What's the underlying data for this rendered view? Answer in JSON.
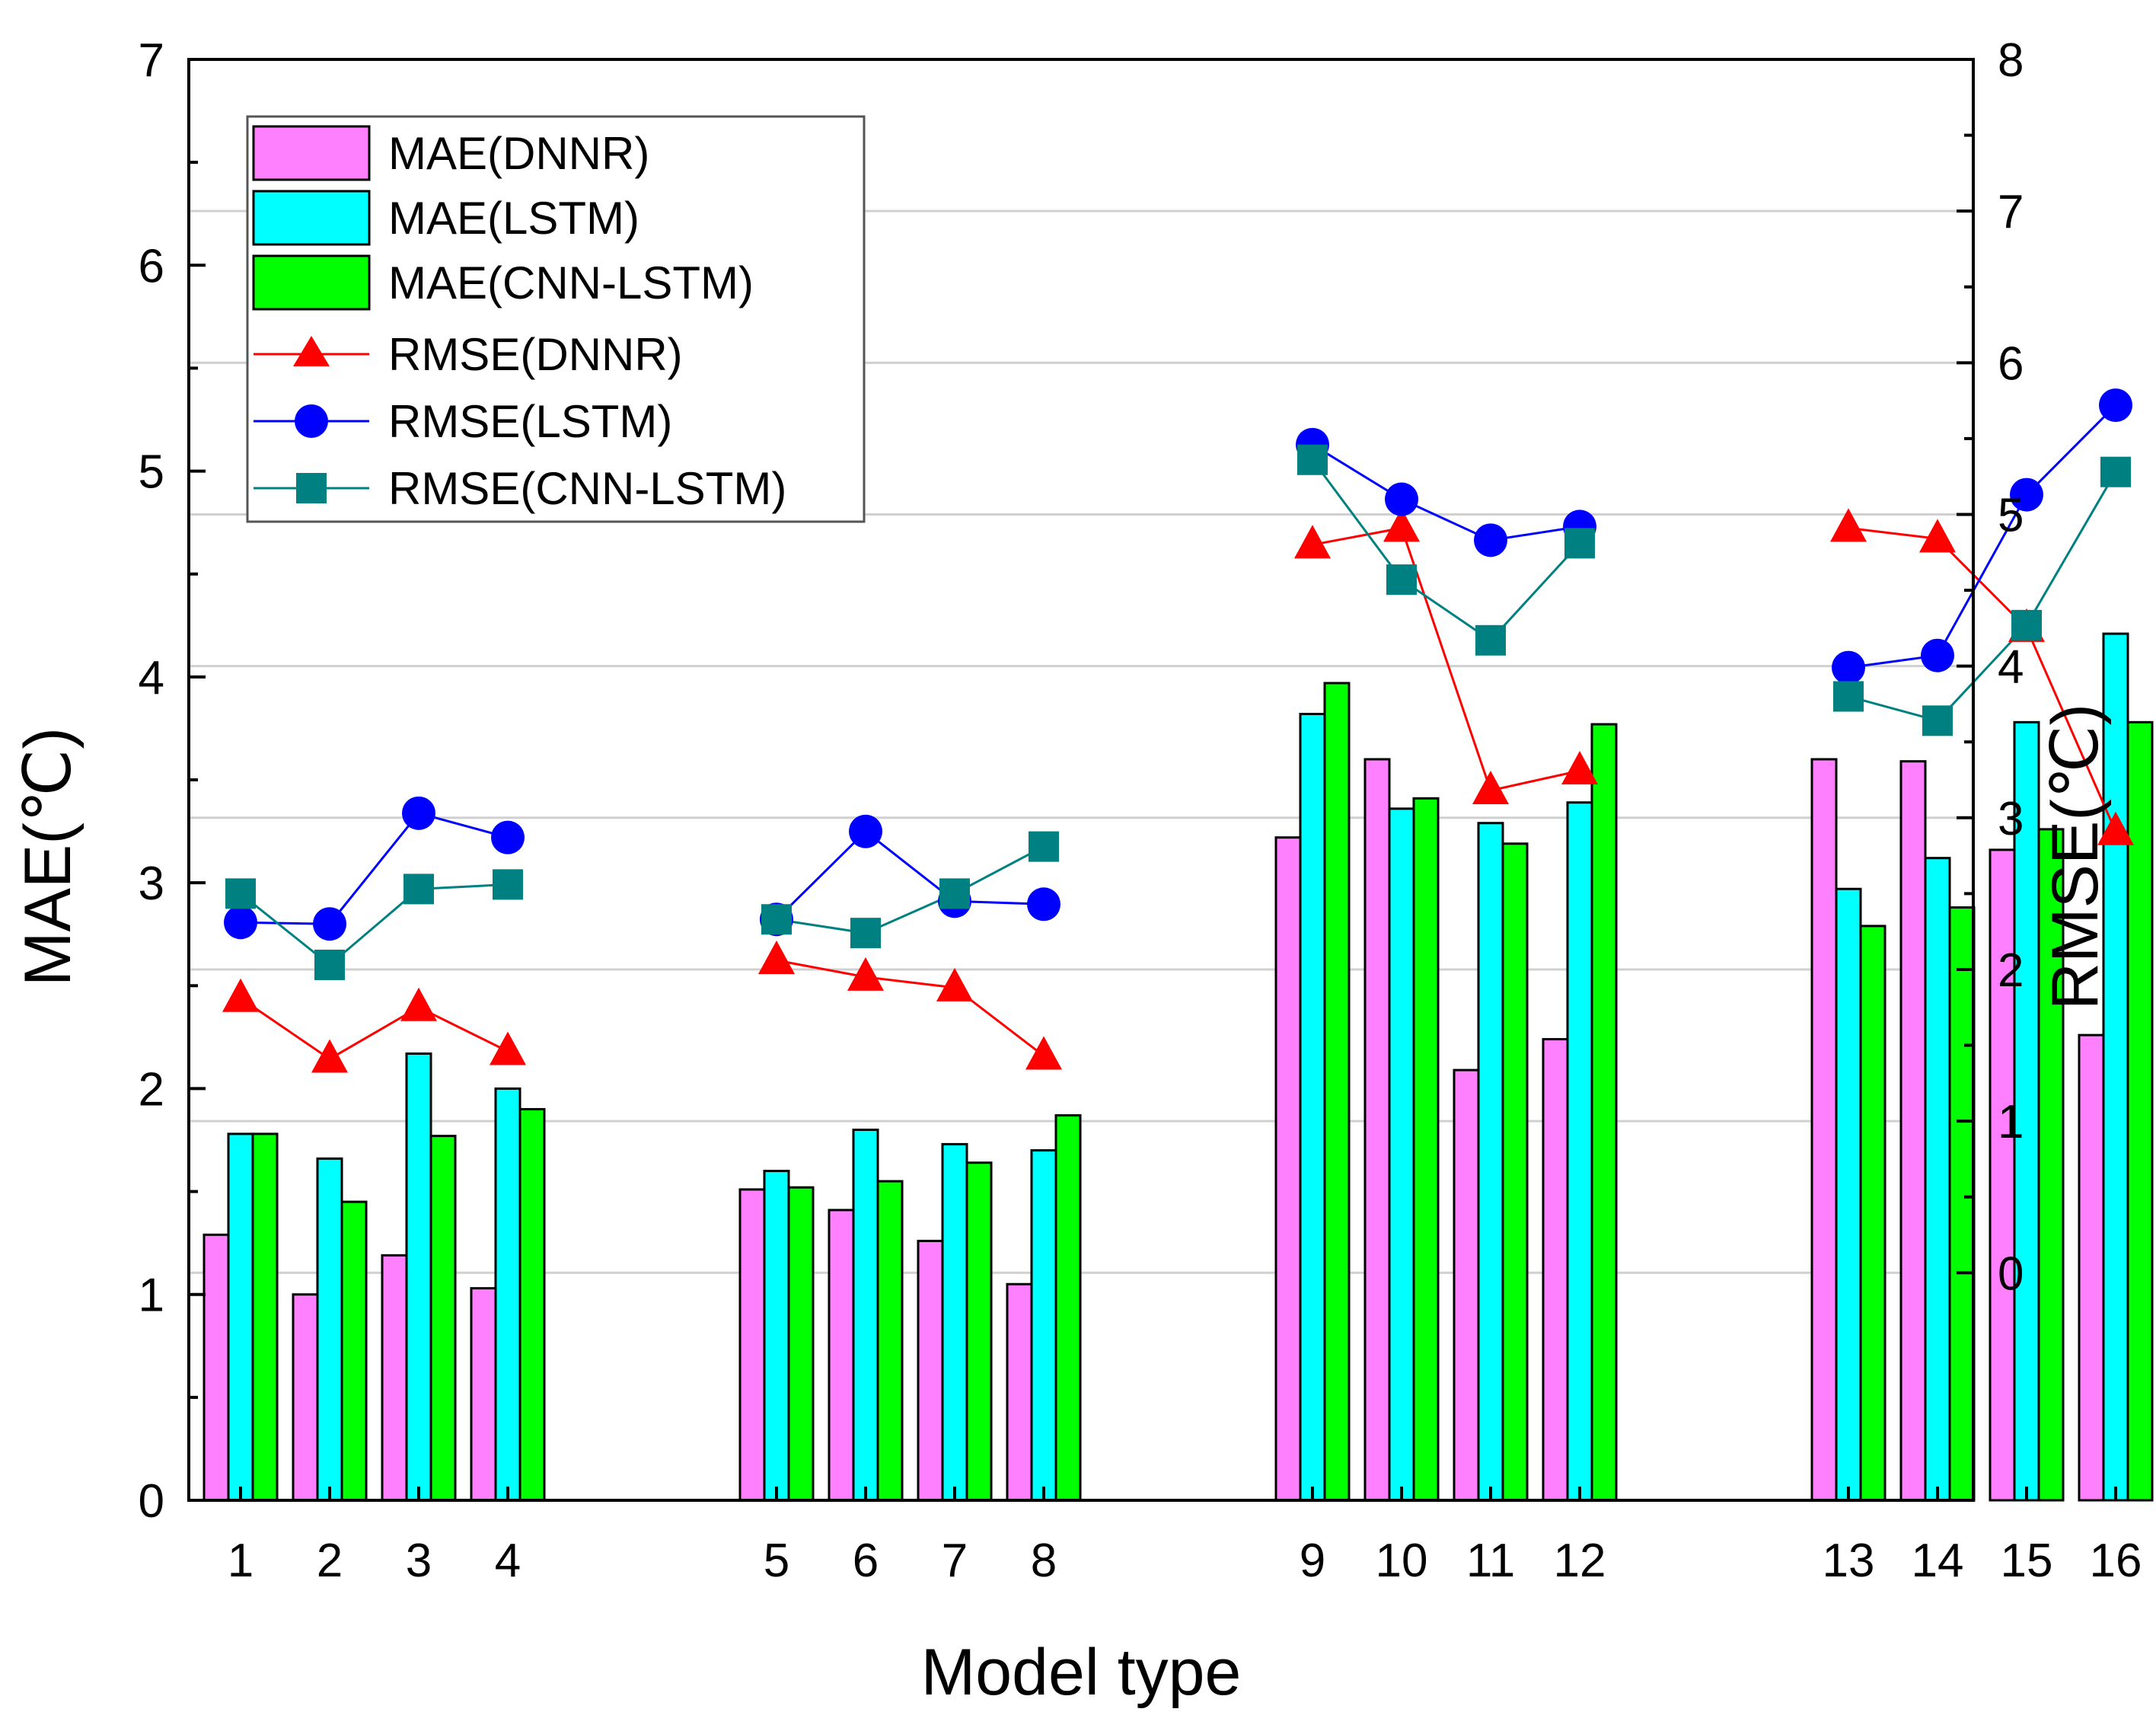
{
  "chart_data": {
    "type": "bar",
    "title": "",
    "xlabel": "Model type",
    "ylabel": "MAE(℃)",
    "y2label": "RMSE(℃)",
    "ylim": [
      0,
      7
    ],
    "y2lim": [
      -1.5,
      8
    ],
    "yticks": [
      "0",
      "1",
      "2",
      "3",
      "4",
      "5",
      "6",
      "7"
    ],
    "y2ticks": [
      "0",
      "1",
      "2",
      "3",
      "4",
      "5",
      "6",
      "7",
      "8"
    ],
    "grid": true,
    "legend_position": "top-left",
    "categories": [
      "1",
      "2",
      "3",
      "4",
      "5",
      "6",
      "7",
      "8",
      "9",
      "10",
      "11",
      "12",
      "13",
      "14",
      "15",
      "16"
    ],
    "bar_series": [
      {
        "name": "MAE(DNNR)",
        "color": "#ff80ff",
        "values": [
          1.29,
          1.0,
          1.19,
          1.03,
          1.51,
          1.41,
          1.26,
          1.05,
          3.22,
          3.6,
          2.09,
          2.24,
          3.6,
          3.59,
          3.16,
          2.26
        ]
      },
      {
        "name": "MAE(LSTM)",
        "color": "#00ffff",
        "values": [
          1.78,
          1.66,
          2.17,
          2.0,
          1.6,
          1.8,
          1.73,
          1.7,
          3.82,
          3.36,
          3.29,
          3.39,
          2.97,
          3.12,
          3.78,
          4.21
        ]
      },
      {
        "name": "MAE(CNN-LSTM)",
        "color": "#00ff00",
        "values": [
          1.78,
          1.45,
          1.77,
          1.9,
          1.52,
          1.55,
          1.64,
          1.87,
          3.97,
          3.41,
          3.19,
          3.77,
          2.79,
          2.88,
          3.26,
          3.78
        ]
      }
    ],
    "line_series": [
      {
        "name": "RMSE(DNNR)",
        "color": "#ff0000",
        "marker": "triangle",
        "values": [
          1.81,
          1.41,
          1.75,
          1.46,
          2.06,
          1.95,
          1.88,
          1.43,
          4.8,
          4.91,
          3.18,
          3.31,
          4.91,
          4.84,
          4.25,
          2.91
        ]
      },
      {
        "name": "RMSE(LSTM)",
        "color": "#0000ff",
        "marker": "circle",
        "values": [
          2.31,
          2.3,
          3.03,
          2.87,
          2.33,
          2.91,
          2.45,
          2.43,
          5.46,
          5.1,
          4.83,
          4.92,
          3.99,
          4.07,
          5.13,
          5.72
        ]
      },
      {
        "name": "RMSE(CNN-LSTM)",
        "color": "#008080",
        "marker": "square",
        "values": [
          2.5,
          2.03,
          2.53,
          2.56,
          2.33,
          2.24,
          2.5,
          2.81,
          5.36,
          4.57,
          4.17,
          4.81,
          3.8,
          3.64,
          4.27,
          5.28
        ]
      }
    ]
  }
}
